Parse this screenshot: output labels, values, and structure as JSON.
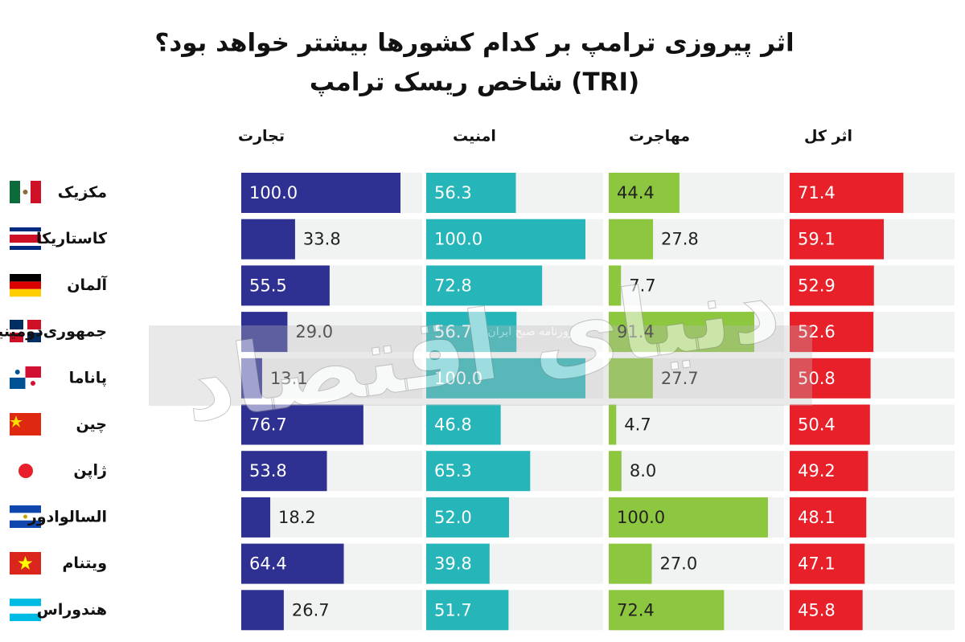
{
  "chart_data": {
    "type": "bar",
    "title": "اثر پیروزی ترامپ بر کدام کشورها بیشتر خواهد بود؟",
    "subtitle": "شاخص ریسک ترامپ (TRI)",
    "watermark": "دنیای اقتصاد",
    "watermark_note": "روزنامه صبح ایران",
    "categories": [
      "مکزیک",
      "کاستاریکا",
      "آلمان",
      "جمهوری‌دومینیکن",
      "پاناما",
      "چین",
      "ژاپن",
      "السالوادور",
      "ویتنام",
      "هندوراس"
    ],
    "xlim": [
      0,
      100
    ],
    "series": [
      {
        "name": "تجارت",
        "color": "#2e3192",
        "values": [
          100.0,
          33.8,
          55.5,
          29.0,
          13.1,
          76.7,
          53.8,
          18.2,
          64.4,
          26.7
        ],
        "value_labels": [
          "100.0",
          "33.8",
          "55.5",
          "29.0",
          "13.1",
          "76.7",
          "53.8",
          "18.2",
          "64.4",
          "26.7"
        ]
      },
      {
        "name": "امنیت",
        "color": "#26b5b8",
        "values": [
          56.3,
          100.0,
          72.8,
          56.7,
          100.0,
          46.8,
          65.3,
          52.0,
          39.8,
          51.7
        ],
        "value_labels": [
          "56.3",
          "100.0",
          "72.8",
          "56.7",
          "100.0",
          "46.8",
          "65.3",
          "52.0",
          "39.8",
          "51.7"
        ]
      },
      {
        "name": "مهاجرت",
        "color": "#8dc63f",
        "values": [
          44.4,
          27.8,
          7.7,
          91.4,
          27.7,
          4.7,
          8.0,
          100.0,
          27.0,
          72.4
        ],
        "value_labels": [
          "44.4",
          "27.8",
          "7.7",
          "91.4",
          "27.7",
          "4.7",
          "8.0",
          "100.0",
          "27.0",
          "72.4"
        ]
      },
      {
        "name": "اثر کل",
        "color": "#e8202a",
        "values": [
          71.4,
          59.1,
          52.9,
          52.6,
          50.8,
          50.4,
          49.2,
          48.1,
          47.1,
          45.8
        ],
        "value_labels": [
          "71.4",
          "59.1",
          "52.9",
          "52.6",
          "50.8",
          "50.4",
          "49.2",
          "48.1",
          "47.1",
          "45.8"
        ]
      }
    ]
  }
}
